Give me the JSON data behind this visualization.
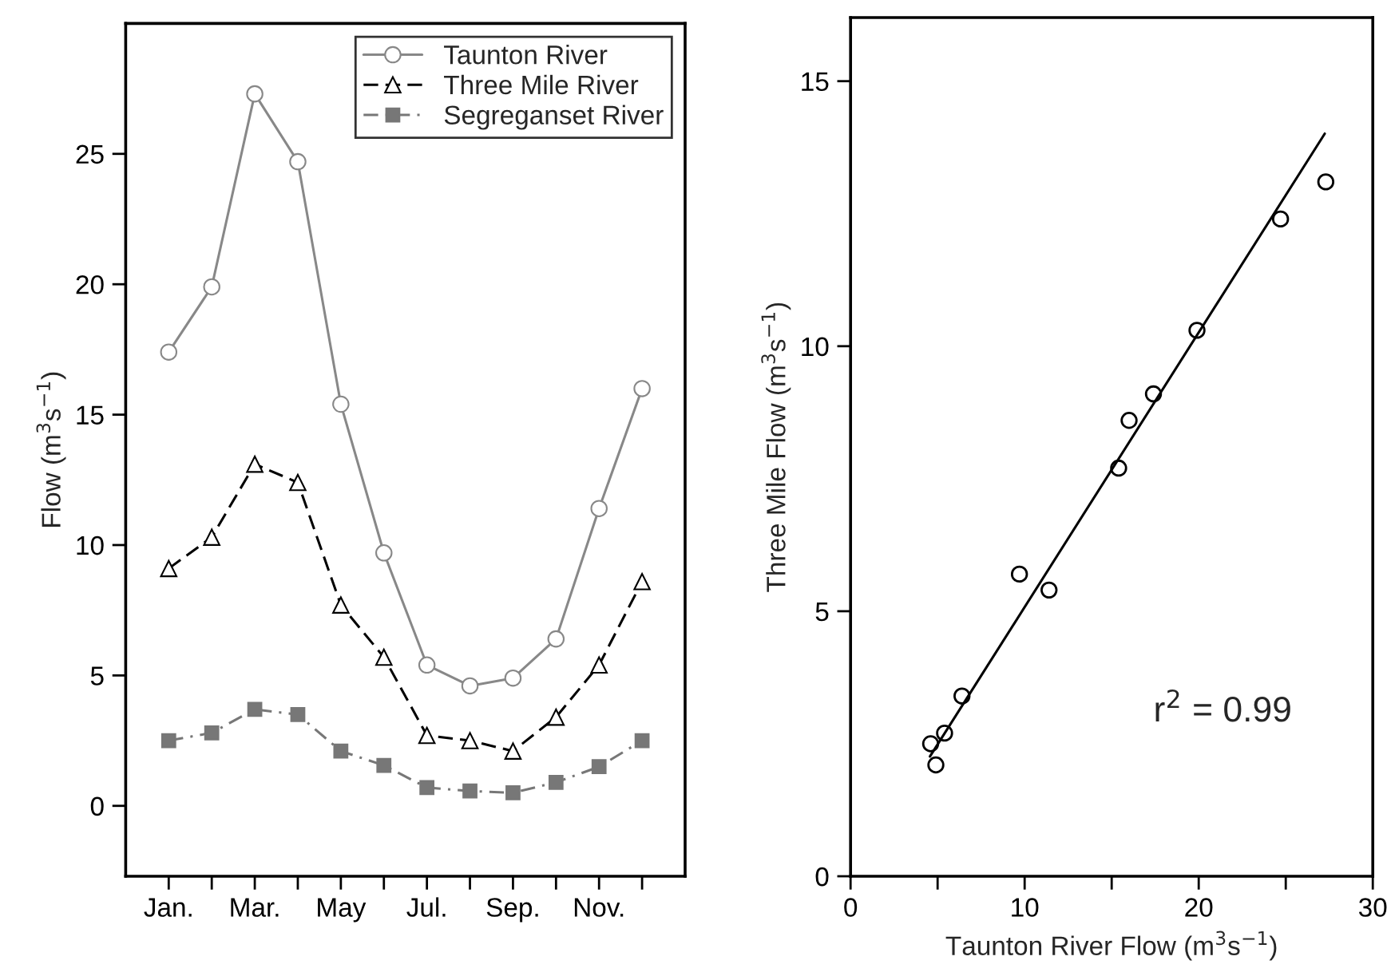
{
  "chart_data": [
    {
      "type": "line",
      "ylabel": "Flow (m$^{3}$s$^{−1}$)",
      "categories": [
        "Jan.",
        null,
        "Mar.",
        null,
        "May",
        null,
        "Jul.",
        null,
        "Sep.",
        null,
        "Nov.",
        null
      ],
      "ylim": [
        -2.7,
        30
      ],
      "yticks": [
        0,
        5,
        10,
        15,
        20,
        25
      ],
      "legend": "top right",
      "grid": false,
      "series": [
        {
          "name": "Taunton River",
          "color": "#888888",
          "marker": "circle",
          "line_style": "solid",
          "values": [
            17.4,
            19.9,
            27.3,
            24.7,
            15.4,
            9.7,
            5.4,
            4.6,
            4.9,
            6.4,
            11.4,
            16.0
          ]
        },
        {
          "name": "Three Mile River",
          "color": "#000000",
          "marker": "triangle",
          "line_style": "dashed",
          "values": [
            9.1,
            10.3,
            13.1,
            12.4,
            7.7,
            5.7,
            2.7,
            2.5,
            2.1,
            3.4,
            5.4,
            8.6
          ]
        },
        {
          "name": "Segreganset River",
          "color": "#777777",
          "marker": "square",
          "line_style": "dashdot",
          "values": [
            2.5,
            2.8,
            3.7,
            3.5,
            2.1,
            1.55,
            0.7,
            0.57,
            0.5,
            0.9,
            1.5,
            2.5
          ]
        }
      ]
    },
    {
      "type": "scatter",
      "xlabel": "Taunton River Flow (m$^{3}$s$^{−1}$)",
      "ylabel": "Three Mile Flow (m$^{3}$s$^{−1}$)",
      "xlim": [
        0,
        30
      ],
      "xticks": [
        0,
        {
          "value": 5,
          "label": null
        },
        10,
        {
          "value": 15,
          "label": null
        },
        20,
        {
          "value": 25,
          "label": null
        },
        30
      ],
      "ylim": [
        0,
        16.2
      ],
      "yticks": [
        0,
        5,
        10,
        15
      ],
      "grid": false,
      "annotations": [
        "r$^{2}$ = 0.99"
      ],
      "series": [
        {
          "type": "scatter",
          "color": "#000000",
          "marker": "circle",
          "x": [
            17.4,
            19.9,
            27.3,
            24.7,
            15.4,
            9.7,
            5.4,
            4.6,
            4.9,
            6.4,
            11.4,
            16.0
          ],
          "values": [
            9.1,
            10.3,
            13.1,
            12.4,
            7.7,
            5.7,
            2.7,
            2.5,
            2.1,
            3.4,
            5.4,
            8.6
          ]
        },
        {
          "type": "line",
          "color": "#000000",
          "line_style": "solid",
          "x": [
            4.56,
            27.24
          ],
          "values": [
            2.26,
            14.01
          ]
        }
      ]
    }
  ]
}
